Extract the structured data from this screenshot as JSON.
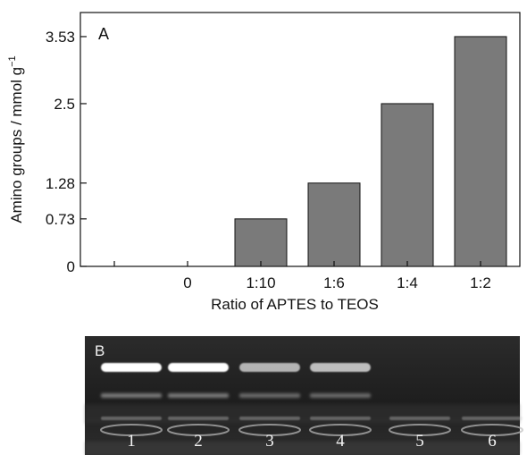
{
  "chart_data": {
    "type": "bar",
    "panel_label": "A",
    "categories": [
      "",
      "0",
      "1:10",
      "1:6",
      "1:4",
      "1:2"
    ],
    "values": [
      0,
      0,
      0.73,
      1.28,
      2.5,
      3.53
    ],
    "xlabel": "Ratio of APTES to TEOS",
    "ylabel": "Amino groups / mmol g",
    "ylabel_superscript": "−1",
    "yticks": [
      "0",
      "0.73",
      "1.28",
      "2.5",
      "3.53"
    ],
    "ylim": [
      0,
      3.9
    ],
    "grid": false,
    "bar_color": "#7a7a7a"
  },
  "gel": {
    "panel_label": "B",
    "lanes": [
      "1",
      "2",
      "3",
      "4",
      "5",
      "6"
    ],
    "background_color": "#222222"
  }
}
